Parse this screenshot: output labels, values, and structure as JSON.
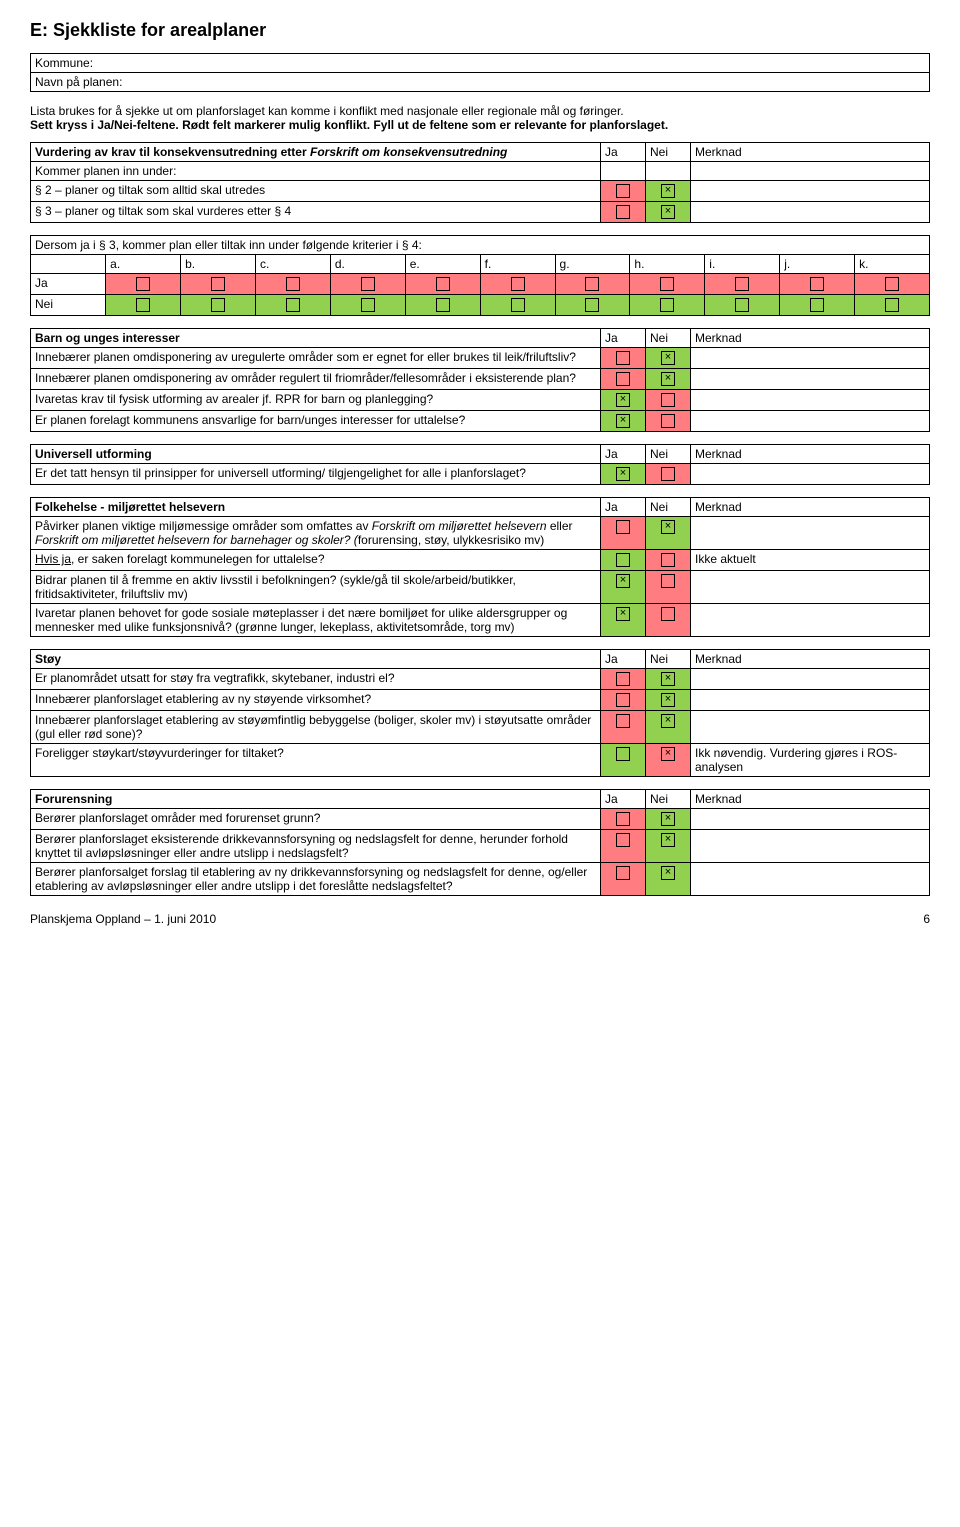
{
  "page": {
    "title": "E:  Sjekkliste for arealplaner",
    "kommuneLabel": "Kommune:",
    "navnLabel": "Navn på planen:",
    "intro1": "Lista brukes for å sjekke ut om planforslaget kan komme i konflikt med nasjonale eller regionale mål og føringer.",
    "intro2": "Sett kryss i Ja/Nei-feltene. Rødt felt markerer mulig konflikt. Fyll ut de feltene som er relevante for planforslaget.",
    "footerLeft": "Planskjema Oppland – 1. juni 2010",
    "footerRight": "6"
  },
  "hdr": {
    "ja": "Ja",
    "nei": "Nei",
    "merknad": "Merknad"
  },
  "vurdering": {
    "title1": "Vurdering av krav til konsekvensutredning etter ",
    "titleItalic": "Forskrift om konsekvensutredning",
    "sub1": "Kommer planen inn under:",
    "row2": "§ 2 – planer og tiltak som alltid skal utredes",
    "row3": "§ 3 – planer og tiltak som skal vurderes etter § 4"
  },
  "dersom": {
    "title": "Dersom ja i § 3, kommer plan eller tiltak inn under følgende kriterier i § 4:",
    "cols": [
      "a.",
      "b.",
      "c.",
      "d.",
      "e.",
      "f.",
      "g.",
      "h.",
      "i.",
      "j.",
      "k."
    ],
    "jaLabel": "Ja",
    "neiLabel": "Nei"
  },
  "barn": {
    "title": "Barn og unges interesser",
    "r1": "Innebærer planen omdisponering av uregulerte områder som er egnet for eller brukes til leik/friluftsliv?",
    "r2": "Innebærer planen omdisponering av områder regulert til friområder/fellesområder i eksisterende plan?",
    "r3": "Ivaretas krav til fysisk utforming av arealer jf. RPR for barn og planlegging?",
    "r4": "Er planen forelagt kommunens ansvarlige for barn/unges interesser for uttalelse?"
  },
  "universell": {
    "title": "Universell utforming",
    "r1": "Er det tatt hensyn til prinsipper for universell utforming/ tilgjengelighet for alle i planforslaget?"
  },
  "folkehelse": {
    "title": "Folkehelse - miljørettet helsevern",
    "r1a": "Påvirker planen viktige miljømessige områder som omfattes av ",
    "r1b": "Forskrift om miljørettet helsevern",
    "r1c": " eller ",
    "r1d": "Forskrift om miljørettet helsevern for barnehager og skoler",
    "r1e": "? (",
    "r1f": "forurensing, støy, ulykkesrisiko mv)",
    "r2a": "Hvis ja",
    "r2b": ", er saken forelagt kommunelegen for uttalelse?",
    "r2merk": "Ikke aktuelt",
    "r3": "Bidrar planen til å fremme en aktiv livsstil i befolkningen? (sykle/gå til skole/arbeid/butikker, fritidsaktiviteter, friluftsliv mv)",
    "r4": "Ivaretar planen behovet for gode sosiale møteplasser i det nære bomiljøet for ulike aldersgrupper og mennesker med ulike funksjonsnivå? (grønne lunger, lekeplass, aktivitetsområde, torg mv)"
  },
  "stoy": {
    "title": "Støy",
    "r1": "Er planområdet utsatt for støy fra vegtrafikk, skytebaner, industri el?",
    "r2": "Innebærer planforslaget etablering av ny støyende virksomhet?",
    "r3": "Innebærer planforslaget etablering av støyømfintlig bebyggelse (boliger, skoler mv) i støyutsatte områder (gul eller rød sone)?",
    "r4": "Foreligger støykart/støyvurderinger for tiltaket?",
    "r4merk": "Ikk nøvendig. Vurdering gjøres i ROS-analysen"
  },
  "forurensning": {
    "title": "Forurensning",
    "r1": "Berører planforslaget områder med forurenset grunn?",
    "r2": "Berører planforslaget eksisterende drikkevannsforsyning og nedslagsfelt for denne, herunder forhold knyttet til avløpsløsninger eller andre utslipp i nedslagsfelt?",
    "r3": "Berører planforsalget forslag til etablering av ny drikkevannsforsyning og nedslagsfelt for denne, og/eller etablering av avløpsløsninger eller andre utslipp i det foreslåtte nedslagsfeltet?"
  }
}
